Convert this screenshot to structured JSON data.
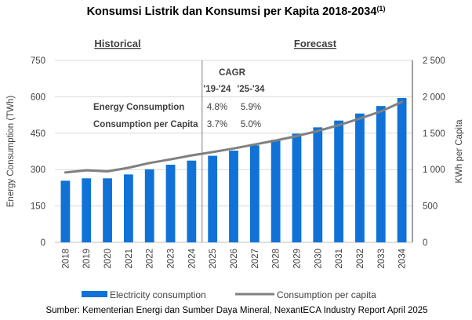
{
  "title": "Konsumsi Listrik dan Konsumsi per Kapita 2018-2034",
  "title_note": "(1)",
  "sections": {
    "historical": "Historical",
    "forecast": "Forecast"
  },
  "cagr": {
    "heading": "CAGR",
    "periods": [
      "'19-'24",
      "'25-'34"
    ],
    "rows": [
      {
        "label": "Energy Consumption",
        "values": [
          "4.8%",
          "5.9%"
        ]
      },
      {
        "label": "Consumption per Capita",
        "values": [
          "3.7%",
          "5.0%"
        ]
      }
    ]
  },
  "legend": {
    "bars": "Electricity consumption",
    "line": "Consumption per capita"
  },
  "source": "Sumber: Kementerian Energi dan Sumber Daya Mineral, NexantECA Industry Report April 2025",
  "colors": {
    "bar": "#1072d6",
    "line": "#808080",
    "grid": "#d9d9d9",
    "divider": "#7f7f7f"
  },
  "chart_data": {
    "type": "bar",
    "categories": [
      "2018",
      "2019",
      "2020",
      "2021",
      "2022",
      "2023",
      "2024",
      "2025",
      "2026",
      "2027",
      "2028",
      "2029",
      "2030",
      "2031",
      "2032",
      "2033",
      "2034"
    ],
    "series": [
      {
        "name": "Electricity consumption",
        "axis": "left",
        "values": [
          254,
          264,
          264,
          280,
          301,
          320,
          337,
          357,
          378,
          400,
          423,
          448,
          474,
          502,
          531,
          562,
          595
        ]
      },
      {
        "name": "Consumption per capita",
        "axis": "right",
        "type": "line",
        "values": [
          960,
          990,
          975,
          1025,
          1090,
          1140,
          1195,
          1240,
          1290,
          1345,
          1400,
          1460,
          1530,
          1610,
          1700,
          1800,
          1930
        ]
      }
    ],
    "ylabel": "Energy Consumption (TWh)",
    "y2label": "KWh per Capita",
    "ylim": [
      0,
      750
    ],
    "y2lim": [
      0,
      2500
    ],
    "yticks": [
      "0",
      "150",
      "300",
      "450",
      "600",
      "750"
    ],
    "y2ticks": [
      "0",
      "500",
      "1 000",
      "1 500",
      "2 000",
      "2 500"
    ],
    "grid": true,
    "legend_position": "bottom"
  }
}
